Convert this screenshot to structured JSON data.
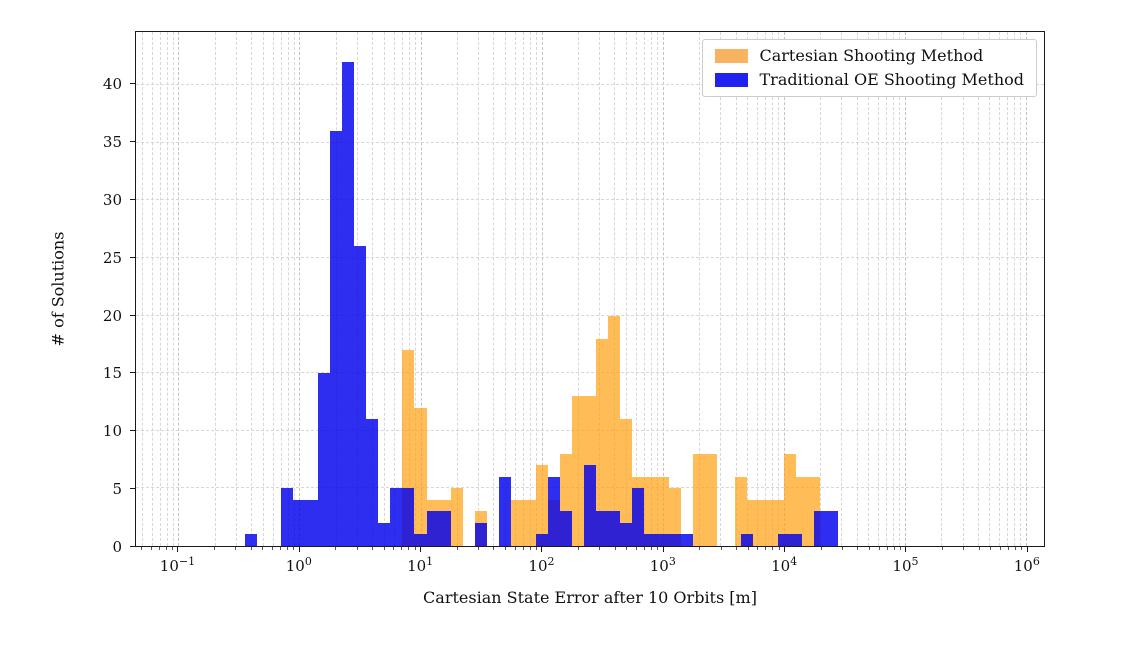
{
  "figure": {
    "background": "#ffffff"
  },
  "chart_data": {
    "type": "bar",
    "subtype": "histogram-log-x",
    "title": "",
    "xlabel": "Cartesian State Error after 10 Orbits [m]",
    "ylabel": "# of Solutions",
    "xscale": "log10",
    "grid": {
      "on": true,
      "color": "#d7d7d7",
      "style": "dashed"
    },
    "x_axis": {
      "min_log": -1.35,
      "max_log": 6.15,
      "tick_exponents": [
        -1,
        0,
        1,
        2,
        3,
        4,
        5,
        6
      ]
    },
    "y_axis": {
      "min": 0,
      "max": 44.6,
      "ticks": [
        0,
        5,
        10,
        15,
        20,
        25,
        30,
        35,
        40
      ]
    },
    "bin_width_log": 0.1,
    "legend": {
      "position": "upper-right"
    },
    "series": [
      {
        "name": "Cartesian Shooting Method",
        "fill": "#FFA010",
        "fill_alpha": 0.7,
        "legend_color": "#F7B360",
        "bars": [
          [
            0.85,
            17
          ],
          [
            0.95,
            12
          ],
          [
            1.05,
            4
          ],
          [
            1.15,
            4
          ],
          [
            1.25,
            5
          ],
          [
            1.45,
            3
          ],
          [
            1.75,
            4
          ],
          [
            1.85,
            4
          ],
          [
            1.95,
            7
          ],
          [
            2.05,
            4
          ],
          [
            2.15,
            8
          ],
          [
            2.25,
            13
          ],
          [
            2.35,
            13
          ],
          [
            2.45,
            18
          ],
          [
            2.55,
            20
          ],
          [
            2.65,
            11
          ],
          [
            2.75,
            6
          ],
          [
            2.85,
            6
          ],
          [
            2.95,
            6
          ],
          [
            3.05,
            5
          ],
          [
            3.25,
            8
          ],
          [
            3.35,
            8
          ],
          [
            3.6,
            6
          ],
          [
            3.7,
            4
          ],
          [
            3.8,
            4
          ],
          [
            3.9,
            4
          ],
          [
            4.0,
            8
          ],
          [
            4.1,
            6
          ],
          [
            4.2,
            6
          ]
        ]
      },
      {
        "name": "Traditional OE Shooting Method",
        "fill": "#0000EE",
        "fill_alpha": 0.82,
        "legend_color": "#2222EE",
        "bars": [
          [
            -0.45,
            1
          ],
          [
            -0.15,
            5
          ],
          [
            -0.05,
            4
          ],
          [
            0.05,
            4
          ],
          [
            0.15,
            15
          ],
          [
            0.25,
            36
          ],
          [
            0.35,
            42
          ],
          [
            0.45,
            26
          ],
          [
            0.55,
            11
          ],
          [
            0.65,
            2
          ],
          [
            0.75,
            5
          ],
          [
            0.85,
            5
          ],
          [
            0.95,
            1
          ],
          [
            1.05,
            3
          ],
          [
            1.15,
            3
          ],
          [
            1.45,
            2
          ],
          [
            1.65,
            6
          ],
          [
            1.95,
            1
          ],
          [
            2.05,
            6
          ],
          [
            2.15,
            3
          ],
          [
            2.35,
            7
          ],
          [
            2.45,
            3
          ],
          [
            2.55,
            3
          ],
          [
            2.65,
            2
          ],
          [
            2.75,
            5
          ],
          [
            2.85,
            1
          ],
          [
            2.95,
            1
          ],
          [
            3.05,
            1
          ],
          [
            3.15,
            1
          ],
          [
            3.65,
            1
          ],
          [
            3.95,
            1
          ],
          [
            4.05,
            1
          ],
          [
            4.25,
            3
          ],
          [
            4.35,
            3
          ]
        ]
      }
    ]
  }
}
